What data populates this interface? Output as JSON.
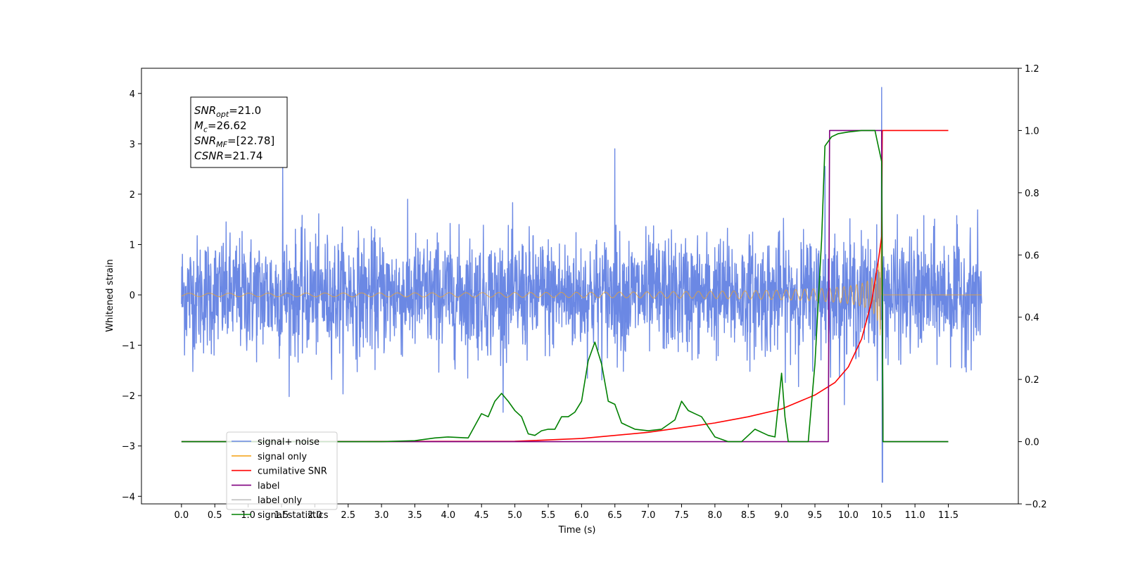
{
  "chart_data": {
    "type": "line",
    "title": "",
    "xlabel": "Time (s)",
    "ylabel": "Whitened strain",
    "y2label": "",
    "xlim": [
      -0.6,
      12.55
    ],
    "ylim": [
      -4.15,
      4.5
    ],
    "y2lim": [
      -0.2,
      1.2
    ],
    "x_ticks": [
      "0.0",
      "0.5",
      "1.0",
      "1.5",
      "2.0",
      "2.5",
      "3.0",
      "3.5",
      "4.0",
      "4.5",
      "5.0",
      "5.5",
      "6.0",
      "6.5",
      "7.0",
      "7.5",
      "8.0",
      "8.5",
      "9.0",
      "9.5",
      "10.0",
      "10.5",
      "11.0",
      "11.5"
    ],
    "y_ticks": [
      "4",
      "3",
      "2",
      "1",
      "0",
      "−1",
      "−2",
      "−3",
      "−4"
    ],
    "y2_ticks": [
      "1.2",
      "1.0",
      "0.8",
      "0.6",
      "0.4",
      "0.2",
      "0.0",
      "−0.2"
    ],
    "grid": false,
    "legend_position": "lower-left",
    "annotation": {
      "lines": [
        {
          "sym": "SNR",
          "sub": "opt",
          "rest": "=21.0"
        },
        {
          "sym": "M",
          "sub": "c",
          "rest": "=26.62"
        },
        {
          "sym": "SNR",
          "sub": "MF",
          "rest": "=[22.78]"
        },
        {
          "sym": "CSNR",
          "sub": "",
          "rest": "=21.74"
        }
      ]
    },
    "series": [
      {
        "name": "signal+ noise",
        "color": "#6b88e4",
        "axis": "left",
        "kind": "noise",
        "x_range": [
          0.0,
          12.0
        ],
        "envelope": 1.5,
        "peak_times": [
          1.52,
          6.5,
          9.65,
          10.5
        ],
        "peak_values": [
          2.65,
          2.9,
          2.55,
          4.12
        ]
      },
      {
        "name": "signal only",
        "color": "#f5a623",
        "axis": "left",
        "kind": "chirp",
        "x_range": [
          0.0,
          12.0
        ],
        "merger_time": 10.5,
        "peak_amplitude": 1.35
      },
      {
        "name": "cumilative SNR",
        "color": "#ff0000",
        "axis": "right",
        "x": [
          0.0,
          5.0,
          6.0,
          7.0,
          7.5,
          8.0,
          8.5,
          9.0,
          9.5,
          9.8,
          10.0,
          10.2,
          10.35,
          10.45,
          10.5,
          10.51,
          11.5
        ],
        "y": [
          0.0,
          0.001,
          0.01,
          0.03,
          0.045,
          0.06,
          0.08,
          0.105,
          0.15,
          0.19,
          0.24,
          0.33,
          0.45,
          0.58,
          0.66,
          1.0,
          1.0
        ]
      },
      {
        "name": "label",
        "color": "#800080",
        "axis": "right",
        "x": [
          0.0,
          9.7,
          9.72,
          10.5,
          10.52,
          11.5
        ],
        "y": [
          0.0,
          0.0,
          1.0,
          1.0,
          0.0,
          0.0
        ]
      },
      {
        "name": "label only",
        "color": "#c0c0c0",
        "axis": "right",
        "x": [],
        "y": []
      },
      {
        "name": "signal statistics",
        "color": "#008000",
        "axis": "right",
        "x": [
          0.0,
          3.0,
          3.5,
          3.8,
          4.0,
          4.3,
          4.5,
          4.6,
          4.7,
          4.8,
          4.9,
          5.0,
          5.1,
          5.2,
          5.3,
          5.4,
          5.5,
          5.6,
          5.7,
          5.8,
          5.9,
          6.0,
          6.1,
          6.2,
          6.3,
          6.4,
          6.5,
          6.6,
          6.8,
          7.0,
          7.2,
          7.4,
          7.5,
          7.6,
          7.7,
          7.8,
          8.0,
          8.2,
          8.4,
          8.6,
          8.8,
          8.9,
          9.0,
          9.05,
          9.1,
          9.2,
          9.4,
          9.5,
          9.6,
          9.65,
          9.75,
          9.85,
          10.0,
          10.2,
          10.4,
          10.45,
          10.5,
          10.52,
          10.6,
          11.5
        ],
        "y": [
          0.0,
          0.0,
          0.003,
          0.012,
          0.015,
          0.012,
          0.09,
          0.08,
          0.13,
          0.155,
          0.13,
          0.1,
          0.08,
          0.025,
          0.02,
          0.035,
          0.04,
          0.04,
          0.08,
          0.08,
          0.095,
          0.13,
          0.26,
          0.32,
          0.25,
          0.13,
          0.12,
          0.06,
          0.04,
          0.035,
          0.04,
          0.07,
          0.13,
          0.1,
          0.09,
          0.08,
          0.015,
          0.0,
          0.0,
          0.04,
          0.02,
          0.015,
          0.22,
          0.08,
          0.0,
          0.0,
          0.0,
          0.25,
          0.65,
          0.95,
          0.98,
          0.99,
          0.995,
          1.0,
          1.0,
          0.95,
          0.9,
          0.0,
          0.0,
          0.0
        ]
      }
    ]
  }
}
